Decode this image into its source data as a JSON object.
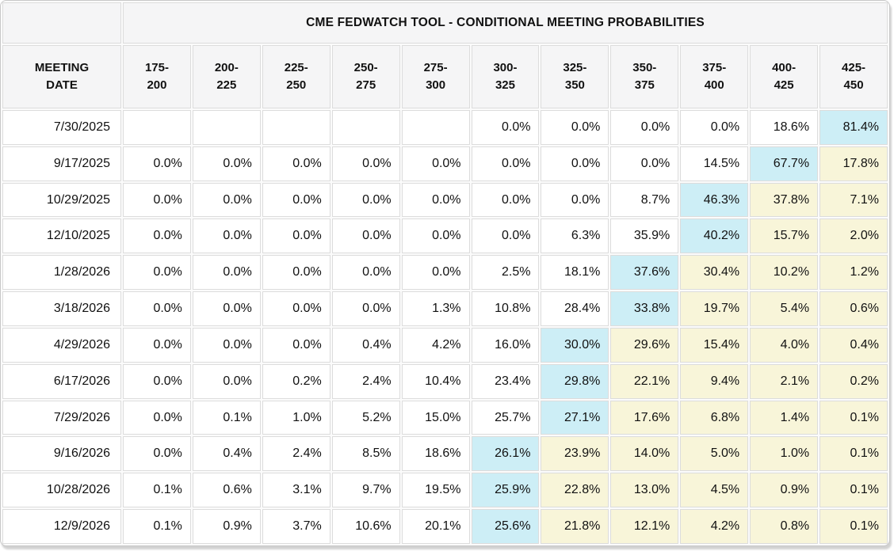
{
  "title": "CME FEDWATCH TOOL - CONDITIONAL MEETING PROBABILITIES",
  "colors": {
    "header_bg": "#f5f5f6",
    "highlight_blue": "#cdeef6",
    "highlight_yellow": "#f8f5d9",
    "grid_border": "#dcdcdc",
    "text": "#111111"
  },
  "table": {
    "date_header": "MEETING DATE",
    "rate_headers": [
      "175-200",
      "200-225",
      "225-250",
      "250-275",
      "275-300",
      "300-325",
      "325-350",
      "350-375",
      "375-400",
      "400-425",
      "425-450"
    ],
    "rows": [
      {
        "date": "7/30/2025",
        "values": [
          "",
          "",
          "",
          "",
          "",
          "0.0%",
          "0.0%",
          "0.0%",
          "0.0%",
          "18.6%",
          "81.4%"
        ],
        "highlights": [
          "",
          "",
          "",
          "",
          "",
          "",
          "",
          "",
          "",
          "",
          "b"
        ]
      },
      {
        "date": "9/17/2025",
        "values": [
          "0.0%",
          "0.0%",
          "0.0%",
          "0.0%",
          "0.0%",
          "0.0%",
          "0.0%",
          "0.0%",
          "14.5%",
          "67.7%",
          "17.8%"
        ],
        "highlights": [
          "",
          "",
          "",
          "",
          "",
          "",
          "",
          "",
          "",
          "b",
          "y"
        ]
      },
      {
        "date": "10/29/2025",
        "values": [
          "0.0%",
          "0.0%",
          "0.0%",
          "0.0%",
          "0.0%",
          "0.0%",
          "0.0%",
          "8.7%",
          "46.3%",
          "37.8%",
          "7.1%"
        ],
        "highlights": [
          "",
          "",
          "",
          "",
          "",
          "",
          "",
          "",
          "b",
          "y",
          "y"
        ]
      },
      {
        "date": "12/10/2025",
        "values": [
          "0.0%",
          "0.0%",
          "0.0%",
          "0.0%",
          "0.0%",
          "0.0%",
          "6.3%",
          "35.9%",
          "40.2%",
          "15.7%",
          "2.0%"
        ],
        "highlights": [
          "",
          "",
          "",
          "",
          "",
          "",
          "",
          "",
          "b",
          "y",
          "y"
        ]
      },
      {
        "date": "1/28/2026",
        "values": [
          "0.0%",
          "0.0%",
          "0.0%",
          "0.0%",
          "0.0%",
          "2.5%",
          "18.1%",
          "37.6%",
          "30.4%",
          "10.2%",
          "1.2%"
        ],
        "highlights": [
          "",
          "",
          "",
          "",
          "",
          "",
          "",
          "b",
          "y",
          "y",
          "y"
        ]
      },
      {
        "date": "3/18/2026",
        "values": [
          "0.0%",
          "0.0%",
          "0.0%",
          "0.0%",
          "1.3%",
          "10.8%",
          "28.4%",
          "33.8%",
          "19.7%",
          "5.4%",
          "0.6%"
        ],
        "highlights": [
          "",
          "",
          "",
          "",
          "",
          "",
          "",
          "b",
          "y",
          "y",
          "y"
        ]
      },
      {
        "date": "4/29/2026",
        "values": [
          "0.0%",
          "0.0%",
          "0.0%",
          "0.4%",
          "4.2%",
          "16.0%",
          "30.0%",
          "29.6%",
          "15.4%",
          "4.0%",
          "0.4%"
        ],
        "highlights": [
          "",
          "",
          "",
          "",
          "",
          "",
          "b",
          "y",
          "y",
          "y",
          "y"
        ]
      },
      {
        "date": "6/17/2026",
        "values": [
          "0.0%",
          "0.0%",
          "0.2%",
          "2.4%",
          "10.4%",
          "23.4%",
          "29.8%",
          "22.1%",
          "9.4%",
          "2.1%",
          "0.2%"
        ],
        "highlights": [
          "",
          "",
          "",
          "",
          "",
          "",
          "b",
          "y",
          "y",
          "y",
          "y"
        ]
      },
      {
        "date": "7/29/2026",
        "values": [
          "0.0%",
          "0.1%",
          "1.0%",
          "5.2%",
          "15.0%",
          "25.7%",
          "27.1%",
          "17.6%",
          "6.8%",
          "1.4%",
          "0.1%"
        ],
        "highlights": [
          "",
          "",
          "",
          "",
          "",
          "",
          "b",
          "y",
          "y",
          "y",
          "y"
        ]
      },
      {
        "date": "9/16/2026",
        "values": [
          "0.0%",
          "0.4%",
          "2.4%",
          "8.5%",
          "18.6%",
          "26.1%",
          "23.9%",
          "14.0%",
          "5.0%",
          "1.0%",
          "0.1%"
        ],
        "highlights": [
          "",
          "",
          "",
          "",
          "",
          "b",
          "y",
          "y",
          "y",
          "y",
          "y"
        ]
      },
      {
        "date": "10/28/2026",
        "values": [
          "0.1%",
          "0.6%",
          "3.1%",
          "9.7%",
          "19.5%",
          "25.9%",
          "22.8%",
          "13.0%",
          "4.5%",
          "0.9%",
          "0.1%"
        ],
        "highlights": [
          "",
          "",
          "",
          "",
          "",
          "b",
          "y",
          "y",
          "y",
          "y",
          "y"
        ]
      },
      {
        "date": "12/9/2026",
        "values": [
          "0.1%",
          "0.9%",
          "3.7%",
          "10.6%",
          "20.1%",
          "25.6%",
          "21.8%",
          "12.1%",
          "4.2%",
          "0.8%",
          "0.1%"
        ],
        "highlights": [
          "",
          "",
          "",
          "",
          "",
          "b",
          "y",
          "y",
          "y",
          "y",
          "y"
        ]
      }
    ]
  }
}
